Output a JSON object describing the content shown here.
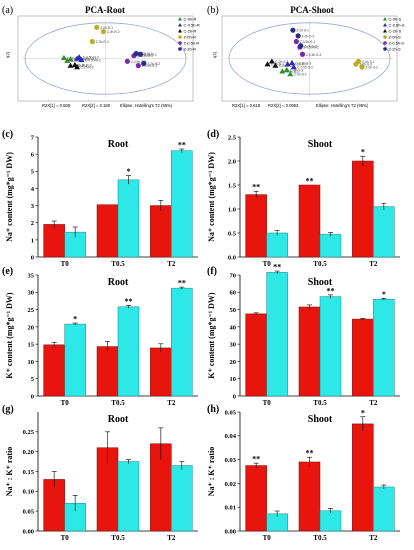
{
  "panels": {
    "a": {
      "letter": "(a)",
      "title": "PCA-Root",
      "legend": [
        "C-0h-R",
        "C-0.5h-R",
        "C-2h-R",
        "Z-0h-R",
        "Z-0.5h-R",
        "Z-2h-R"
      ],
      "footer": [
        "R2X[1] = 0.508",
        "R2X[2] = 0.180",
        "Ellipse: Hotelling's T2 (95%)"
      ],
      "xlabel": "t[1]",
      "ylabel": "t[2]"
    },
    "b": {
      "letter": "(b)",
      "title": "PCA-Shoot",
      "legend": [
        "C-0h-S",
        "C-0.5h-S",
        "C-2h-S",
        "Z-0h-S",
        "Z-0.5h-S",
        "Z-2h-S"
      ],
      "footer": [
        "R2X[1] = 0.618",
        "R2X[2] = 0.0953",
        "Ellipse: Hotelling's T2 (95%)"
      ],
      "xlabel": "t[1]",
      "ylabel": "t[2]"
    },
    "c": {
      "letter": "(c)"
    },
    "d": {
      "letter": "(d)"
    },
    "e": {
      "letter": "(e)"
    },
    "f": {
      "letter": "(f)"
    },
    "g": {
      "letter": "(g)"
    },
    "h": {
      "letter": "(h)"
    }
  },
  "colors": {
    "control": "#e8150f",
    "treatment": "#2ee8e8",
    "ellipse": "#9aa8d8"
  },
  "chart_data": [
    {
      "id": "a",
      "type": "scatter",
      "title": "PCA-Root",
      "xlim": [
        -4,
        4
      ],
      "ylim": [
        -3,
        3
      ],
      "series": [
        {
          "name": "C-0h-R",
          "marker": "triangle",
          "color": "#2f8f2f",
          "points": [
            [
              -1.9,
              0.05
            ],
            [
              -1.6,
              -0.05
            ],
            [
              -1.75,
              -0.15
            ]
          ],
          "labels": [
            "C-0h-R-1",
            "C-0h-R-2",
            "C-0h-R-3"
          ]
        },
        {
          "name": "C-0.5h-R",
          "marker": "triangle",
          "color": "#2a2ab8",
          "points": [
            [
              -1.3,
              0.0
            ],
            [
              -1.1,
              -0.1
            ],
            [
              -1.2,
              0.1
            ]
          ],
          "labels": [
            "C-0.5h-R-1",
            "C-0.5h-R-2",
            "C-0.5h-R-3"
          ]
        },
        {
          "name": "C-2h-R",
          "marker": "triangle",
          "color": "#111111",
          "points": [
            [
              -1.6,
              -0.5
            ],
            [
              -1.3,
              -0.6
            ],
            [
              -1.4,
              -0.45
            ]
          ],
          "labels": [
            "C-2h-R-1",
            "C-2h-R-2",
            "C-2h-R-3"
          ]
        },
        {
          "name": "Z-0h-R",
          "marker": "circle",
          "color": "#b8b020",
          "points": [
            [
              -0.4,
              2.2
            ],
            [
              -0.1,
              1.9
            ],
            [
              -0.6,
              1.2
            ]
          ],
          "labels": [
            "Z-0h-R-1",
            "Z-0h-R-2",
            "Z-0h-R-3"
          ]
        },
        {
          "name": "Z-0.5h-R",
          "marker": "circle",
          "color": "#7a2aa8",
          "points": [
            [
              1.3,
              0.2
            ],
            [
              1.5,
              -0.5
            ],
            [
              1.0,
              -0.2
            ]
          ],
          "labels": [
            "Z-0.5h-R-1",
            "Z-0.5h-R-2",
            "Z-0.5h-R-3"
          ]
        },
        {
          "name": "Z-2h-R",
          "marker": "circle",
          "color": "#2a2a8a",
          "points": [
            [
              1.6,
              0.3
            ],
            [
              1.75,
              -0.35
            ],
            [
              1.4,
              0.35
            ]
          ],
          "labels": [
            "Z-2h-R-1",
            "Z-2h-R-2",
            "Z-2h-R-3"
          ]
        }
      ]
    },
    {
      "id": "b",
      "type": "scatter",
      "title": "PCA-Shoot",
      "xlim": [
        -10,
        10
      ],
      "ylim": [
        -3,
        3
      ],
      "series": [
        {
          "name": "C-0h-S",
          "marker": "triangle",
          "color": "#2f8f2f",
          "points": [
            [
              -3.1,
              -0.9
            ],
            [
              -2.2,
              -1.1
            ],
            [
              -2.6,
              -0.8
            ]
          ],
          "labels": [
            "C-0h-S-1",
            "C-0h-S-2",
            "C-0h-S-3"
          ]
        },
        {
          "name": "C-0.5h-S",
          "marker": "triangle",
          "color": "#2a2ab8",
          "points": [
            [
              -2.5,
              -0.4
            ],
            [
              -1.8,
              -0.6
            ],
            [
              -2.0,
              -0.3
            ]
          ],
          "labels": [
            "C-0.5h-S-1",
            "C-0.5h-S-2",
            "C-0.5h-S-3"
          ]
        },
        {
          "name": "C-2h-S",
          "marker": "triangle",
          "color": "#111111",
          "points": [
            [
              -4.8,
              -0.4
            ],
            [
              -4.3,
              -0.2
            ],
            [
              -3.9,
              -0.5
            ]
          ],
          "labels": [
            "C-2h-S-1",
            "C-2h-S-2",
            "C-2h-S-3"
          ]
        },
        {
          "name": "Z-0h-S",
          "marker": "circle",
          "color": "#b8b020",
          "points": [
            [
              5.6,
              -0.2
            ],
            [
              6.0,
              -0.6
            ],
            [
              5.3,
              -0.4
            ]
          ],
          "labels": [
            "Z-0h-S-1",
            "Z-0h-S-2",
            "Z-0h-S-3"
          ]
        },
        {
          "name": "Z-0.5h-S",
          "marker": "circle",
          "color": "#7a2aa8",
          "points": [
            [
              -1.5,
              1.2
            ],
            [
              -1.1,
              0.8
            ],
            [
              -0.8,
              0.3
            ]
          ],
          "labels": [
            "Z-0.5h-S-1",
            "Z-0.5h-S-2",
            "Z-0.5h-S-3"
          ]
        },
        {
          "name": "Z-2h-S",
          "marker": "circle",
          "color": "#2a2a8a",
          "points": [
            [
              -1.9,
              2.0
            ],
            [
              -1.3,
              1.6
            ],
            [
              -1.0,
              0.9
            ]
          ],
          "labels": [
            "Z-2h-S-1",
            "Z-2h-S-2",
            "Z-2h-S-3"
          ]
        }
      ]
    },
    {
      "id": "c",
      "type": "bar",
      "title": "Root",
      "ylabel": "Na⁺ content (mg*g⁻¹ DW)",
      "categories": [
        "T0",
        "T0.5",
        "T2"
      ],
      "ylim": [
        0,
        7
      ],
      "yticks": [
        0,
        1,
        2,
        3,
        4,
        5,
        6,
        7
      ],
      "values_control": [
        1.9,
        3.05,
        3.0
      ],
      "errors_control": [
        0.2,
        0.0,
        0.3
      ],
      "values_treatment": [
        1.45,
        4.5,
        6.2
      ],
      "errors_treatment": [
        0.3,
        0.25,
        0.1
      ],
      "marks": [
        "",
        "*",
        "**"
      ]
    },
    {
      "id": "d",
      "type": "bar",
      "title": "Shoot",
      "ylabel": "Na⁺ content (mg*g⁻¹ DW)",
      "categories": [
        "T0",
        "T0.5",
        "T2"
      ],
      "ylim": [
        0,
        2.5
      ],
      "yticks": [
        0.0,
        0.5,
        1.0,
        1.5,
        2.0,
        2.5
      ],
      "values_control": [
        1.3,
        1.5,
        2.0
      ],
      "errors_control": [
        0.07,
        0.0,
        0.1
      ],
      "values_treatment": [
        0.5,
        0.47,
        1.05
      ],
      "errors_treatment": [
        0.05,
        0.04,
        0.07
      ],
      "marks": [
        "**",
        "**",
        "*"
      ]
    },
    {
      "id": "e",
      "type": "bar",
      "title": "Root",
      "ylabel": "K⁺ content (mg*g⁻¹ DW)",
      "categories": [
        "T0",
        "T0.5",
        "T2"
      ],
      "ylim": [
        0,
        35
      ],
      "yticks": [
        0,
        5,
        10,
        15,
        20,
        25,
        30,
        35
      ],
      "values_control": [
        14.8,
        14.3,
        13.9
      ],
      "errors_control": [
        0.7,
        1.5,
        1.2
      ],
      "values_treatment": [
        20.8,
        25.8,
        31.2
      ],
      "errors_treatment": [
        0.3,
        0.4,
        0.3
      ],
      "marks": [
        "*",
        "**",
        "**"
      ]
    },
    {
      "id": "f",
      "type": "bar",
      "title": "Shoot",
      "ylabel": "K⁺ content (mg*g⁻¹ DW)",
      "categories": [
        "T0",
        "T0.5",
        "T2"
      ],
      "ylim": [
        0,
        70
      ],
      "yticks": [
        0,
        10,
        20,
        30,
        40,
        50,
        60,
        70
      ],
      "values_control": [
        47.5,
        51.5,
        44.5
      ],
      "errors_control": [
        0.6,
        1.2,
        0.4
      ],
      "values_treatment": [
        71.5,
        57.5,
        56.0
      ],
      "errors_treatment": [
        0.8,
        1.0,
        0.5
      ],
      "marks": [
        "**",
        "**",
        "*"
      ]
    },
    {
      "id": "g",
      "type": "bar",
      "title": "Root",
      "ylabel": "Na⁺ : K⁺ ratio",
      "categories": [
        "T0",
        "T0.5",
        "T2"
      ],
      "ylim": [
        0,
        0.3
      ],
      "yticks": [
        0.0,
        0.05,
        0.1,
        0.15,
        0.2,
        0.25
      ],
      "values_control": [
        0.13,
        0.21,
        0.22
      ],
      "errors_control": [
        0.02,
        0.04,
        0.04
      ],
      "values_treatment": [
        0.07,
        0.175,
        0.165
      ],
      "errors_treatment": [
        0.02,
        0.005,
        0.01
      ],
      "marks": [
        "",
        "",
        ""
      ]
    },
    {
      "id": "h",
      "type": "bar",
      "title": "Shoot",
      "ylabel": "Na⁺ : K⁺ ratio",
      "categories": [
        "T0",
        "T0.5",
        "T2"
      ],
      "ylim": [
        0,
        0.05
      ],
      "yticks": [
        0.0,
        0.01,
        0.02,
        0.03,
        0.04,
        0.05
      ],
      "values_control": [
        0.0275,
        0.029,
        0.045
      ],
      "errors_control": [
        0.001,
        0.002,
        0.003
      ],
      "values_treatment": [
        0.0072,
        0.0085,
        0.0185
      ],
      "errors_treatment": [
        0.0012,
        0.001,
        0.0008
      ],
      "marks": [
        "**",
        "**",
        "*"
      ]
    }
  ]
}
